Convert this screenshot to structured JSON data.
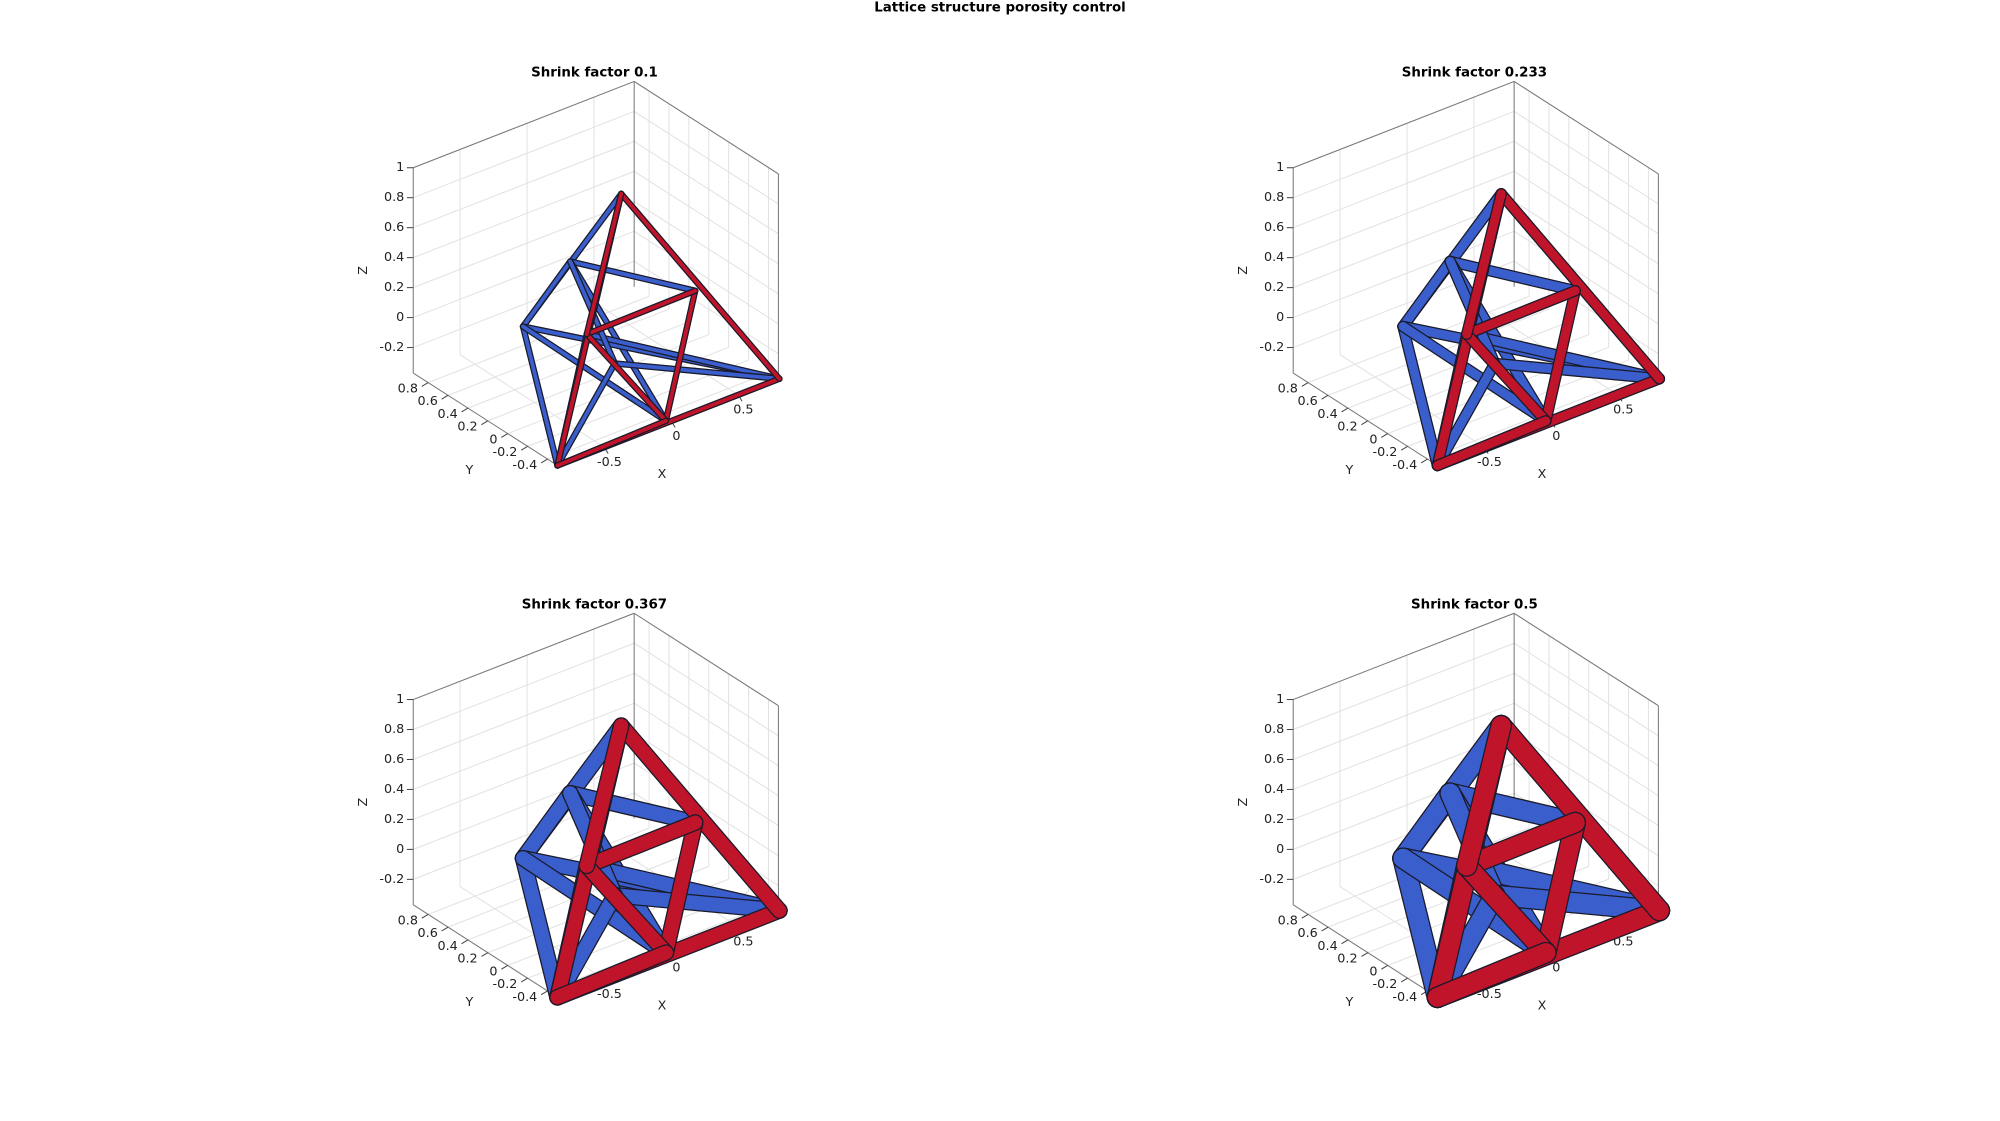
{
  "title": "Lattice structure porosity control",
  "chart_data": [
    {
      "type": "lattice3d",
      "title": "Shrink factor 0.1",
      "xlabel": "X",
      "ylabel": "Y",
      "zlabel": "Z",
      "xlim": [
        -0.85,
        0.8
      ],
      "ylim": [
        -0.5,
        0.95
      ],
      "zlim": [
        -0.37,
        1
      ],
      "xticks": [
        -0.5,
        0,
        0.5
      ],
      "yticks": [
        -0.4,
        -0.2,
        0,
        0.2,
        0.4,
        0.6,
        0.8
      ],
      "zticks": [
        -0.2,
        0,
        0.2,
        0.4,
        0.6,
        0.8,
        1
      ],
      "grid": true
    },
    {
      "type": "lattice3d",
      "title": "Shrink factor 0.233",
      "xlabel": "X",
      "ylabel": "Y",
      "zlabel": "Z",
      "xlim": [
        -0.85,
        0.8
      ],
      "ylim": [
        -0.5,
        0.95
      ],
      "zlim": [
        -0.37,
        1
      ],
      "xticks": [
        -0.5,
        0,
        0.5
      ],
      "yticks": [
        -0.4,
        -0.2,
        0,
        0.2,
        0.4,
        0.6,
        0.8
      ],
      "zticks": [
        -0.2,
        0,
        0.2,
        0.4,
        0.6,
        0.8,
        1
      ],
      "grid": true
    },
    {
      "type": "lattice3d",
      "title": "Shrink factor 0.367",
      "xlabel": "X",
      "ylabel": "Y",
      "zlabel": "Z",
      "xlim": [
        -0.85,
        0.8
      ],
      "ylim": [
        -0.5,
        0.95
      ],
      "zlim": [
        -0.37,
        1
      ],
      "xticks": [
        -0.5,
        0,
        0.5
      ],
      "yticks": [
        -0.4,
        -0.2,
        0,
        0.2,
        0.4,
        0.6,
        0.8
      ],
      "zticks": [
        -0.2,
        0,
        0.2,
        0.4,
        0.6,
        0.8,
        1
      ],
      "grid": true
    },
    {
      "type": "lattice3d",
      "title": "Shrink factor 0.5",
      "xlabel": "X",
      "ylabel": "Y",
      "zlabel": "Z",
      "xlim": [
        -0.85,
        0.8
      ],
      "ylim": [
        -0.5,
        0.95
      ],
      "zlim": [
        -0.37,
        1
      ],
      "xticks": [
        -0.5,
        0,
        0.5
      ],
      "yticks": [
        -0.4,
        -0.2,
        0,
        0.2,
        0.4,
        0.6,
        0.8
      ],
      "zticks": [
        -0.2,
        0,
        0.2,
        0.4,
        0.6,
        0.8,
        1
      ],
      "grid": true
    }
  ]
}
